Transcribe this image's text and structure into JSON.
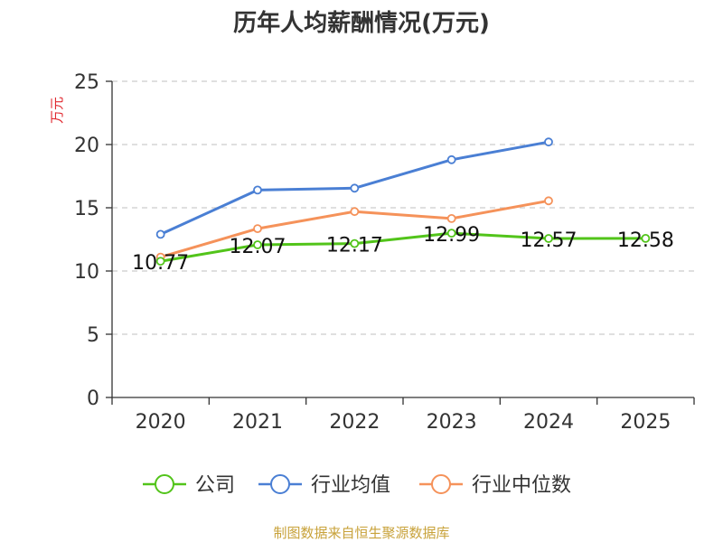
{
  "chart_data": {
    "type": "line",
    "title": "历年人均薪酬情况(万元)",
    "ylabel": "万元",
    "xlabel": "",
    "categories": [
      "2020",
      "2021",
      "2022",
      "2023",
      "2024",
      "2025"
    ],
    "ylim": [
      0,
      25
    ],
    "yticks": [
      0,
      5,
      10,
      15,
      20,
      25
    ],
    "grid": "horizontal-dashed",
    "legend_position": "bottom",
    "series": [
      {
        "name": "公司",
        "color": "#52c41a",
        "values": [
          10.77,
          12.07,
          12.17,
          12.99,
          12.57,
          12.58
        ],
        "labels": [
          "10.77",
          "12.07",
          "12.17",
          "12.99",
          "12.57",
          "12.58"
        ]
      },
      {
        "name": "行业均值",
        "color": "#4a7fd4",
        "values": [
          12.9,
          16.4,
          16.55,
          18.8,
          20.2,
          null
        ]
      },
      {
        "name": "行业中位数",
        "color": "#f5925a",
        "values": [
          11.1,
          13.35,
          14.7,
          14.15,
          15.55,
          null
        ]
      }
    ]
  },
  "source_text": "制图数据来自恒生聚源数据库",
  "colors": {
    "unit": "#e0282f",
    "source": "#c8a23a",
    "axis": "#333333",
    "grid": "#cccccc"
  }
}
